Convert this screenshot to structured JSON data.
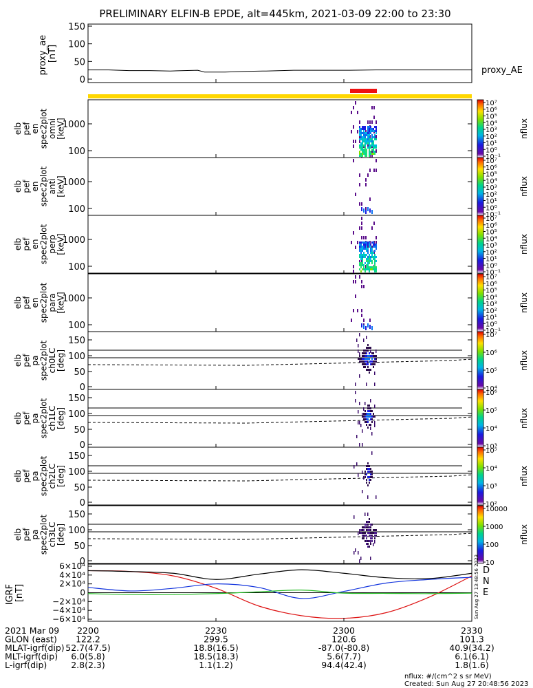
{
  "title": "PRELIMINARY ELFIN-B EPDE, alt=445km, 2021-03-09 22:00 to 23:30",
  "colors": {
    "proxy_bar": "#ffd700",
    "science_bar": "#ee1111",
    "igrf_D": "#dd1111",
    "igrf_N": "#1133dd",
    "igrf_E": "#22bb22"
  },
  "chart_data": [
    {
      "type": "line",
      "panel": "proxy_ae",
      "ylabel": "proxy_ae [nT]",
      "legend": "proxy_AE",
      "ylim": [
        0,
        150
      ],
      "yticks": [
        "150",
        "100",
        "50",
        "0"
      ],
      "x_minutes": [
        0,
        30,
        60,
        90,
        120,
        140,
        160,
        170,
        200,
        230,
        260,
        300,
        340,
        380,
        420,
        450,
        480,
        520,
        560
      ],
      "values": [
        26,
        26,
        24,
        24,
        23,
        24,
        25,
        20,
        20,
        22,
        23,
        25,
        25,
        25,
        26,
        26,
        26,
        26,
        26
      ]
    },
    {
      "type": "heatmap",
      "panel": "omni",
      "ylabel": "elb pef en spec2plot omni [keV]",
      "yticks": [
        "1000",
        "100"
      ],
      "colorbar_label": "nflux",
      "colorbar_ticks": [
        "10⁷",
        "10⁶",
        "10⁵",
        "10⁴",
        "10³",
        "10²",
        "10¹",
        "10⁰",
        "10⁻¹"
      ]
    },
    {
      "type": "heatmap",
      "panel": "anti",
      "ylabel": "elb pef en spec2plot anti [keV]",
      "yticks": [
        "1000",
        "100"
      ],
      "colorbar_label": "nflux",
      "colorbar_ticks": [
        "10⁷",
        "10⁶",
        "10⁵",
        "10⁴",
        "10³",
        "10²",
        "10¹",
        "10⁰",
        "10⁻¹"
      ]
    },
    {
      "type": "heatmap",
      "panel": "perp",
      "ylabel": "elb pef en spec2plot perp [keV]",
      "yticks": [
        "1000",
        "100"
      ],
      "colorbar_label": "nflux",
      "colorbar_ticks": [
        "10⁷",
        "10⁶",
        "10⁵",
        "10⁴",
        "10³",
        "10²",
        "10¹",
        "10⁰",
        "10⁻¹"
      ]
    },
    {
      "type": "heatmap",
      "panel": "para",
      "ylabel": "elb pef en spec2plot para [keV]",
      "yticks": [
        "1000",
        "100"
      ],
      "colorbar_label": "nflux",
      "colorbar_ticks": [
        "10⁷",
        "10⁶",
        "10⁵",
        "10⁴",
        "10³",
        "10²",
        "10¹",
        "10⁰",
        "10⁻¹"
      ]
    },
    {
      "type": "heatmap",
      "panel": "ch0LC",
      "ylabel": "elb pef pa spec2plot ch0LC [deg]",
      "ylim": [
        0,
        180
      ],
      "yticks": [
        "150",
        "100",
        "50",
        "0"
      ],
      "colorbar_label": "nflux",
      "colorbar_ticks": [
        "10⁷",
        "10⁶",
        "10⁵",
        "10⁴"
      ]
    },
    {
      "type": "heatmap",
      "panel": "ch1LC",
      "ylabel": "elb pef pa spec2plot ch1LC [deg]",
      "ylim": [
        0,
        180
      ],
      "yticks": [
        "150",
        "100",
        "50",
        "0"
      ],
      "colorbar_label": "nflux",
      "colorbar_ticks": [
        "10⁶",
        "10⁵",
        "10⁴",
        "10³"
      ]
    },
    {
      "type": "heatmap",
      "panel": "ch2LC",
      "ylabel": "elb pef pa spec2plot ch2LC [deg]",
      "ylim": [
        0,
        180
      ],
      "yticks": [
        "150",
        "100",
        "50",
        "0"
      ],
      "colorbar_label": "nflux",
      "colorbar_ticks": [
        "10⁵",
        "10⁴",
        "10³",
        "10²"
      ]
    },
    {
      "type": "heatmap",
      "panel": "ch3LC",
      "ylabel": "elb pef pa spec2plot ch3LC [deg]",
      "ylim": [
        0,
        180
      ],
      "yticks": [
        "150",
        "100",
        "50",
        "0"
      ],
      "colorbar_label": "nflux",
      "colorbar_ticks": [
        "10000",
        "1000",
        "100",
        "10"
      ]
    },
    {
      "type": "line",
      "panel": "igrf",
      "ylabel": "IGRF [nT]",
      "ylim": [
        -60000,
        60000
      ],
      "yticks": [
        "6×10⁴",
        "4×10⁴",
        "2×10⁴",
        "0",
        "−2×10⁴",
        "−4×10⁴",
        "−6×10⁴"
      ],
      "x_minutes": [
        0,
        10,
        20,
        30,
        40,
        50,
        60,
        70,
        80,
        90
      ],
      "series": [
        {
          "name": "D",
          "values": [
            50000,
            48000,
            38000,
            10000,
            -30000,
            -52000,
            -58000,
            -45000,
            -10000,
            38000
          ]
        },
        {
          "name": "N",
          "values": [
            12000,
            4000,
            10000,
            20000,
            12000,
            -13000,
            3000,
            22000,
            30000,
            35000
          ]
        },
        {
          "name": "E",
          "values": [
            -2000,
            -4000,
            -4000,
            -2000,
            2000,
            6000,
            -1000,
            -1500,
            -2000,
            -1000
          ]
        },
        {
          "name": "",
          "values": [
            50000,
            48000,
            44000,
            30000,
            42000,
            52000,
            44000,
            34000,
            32000,
            44000
          ]
        }
      ]
    }
  ],
  "xaxis": {
    "row_labels": [
      "2021 Mar 09",
      "GLON (east)",
      "MLAT-igrf(dip)",
      "MLT-igrf(dip)",
      "L-igrf(dip)"
    ],
    "ticks": [
      {
        "minute": 0,
        "values": [
          "2200",
          "122.2",
          "52.7(47.5)",
          "6.0(5.8)",
          "2.8(2.3)"
        ]
      },
      {
        "minute": 30,
        "values": [
          "2230",
          "299.5",
          "18.8(16.5)",
          "18.5(18.3)",
          "1.1(1.2)"
        ]
      },
      {
        "minute": 60,
        "values": [
          "2300",
          "120.6",
          "-87.0(-80.8)",
          "5.6(7.7)",
          "94.4(42.4)"
        ]
      },
      {
        "minute": 90,
        "values": [
          "2330",
          "101.3",
          "40.9(34.2)",
          "6.1(6.1)",
          "1.8(1.6)"
        ]
      }
    ]
  },
  "footer": {
    "units": "nflux: #/(cm^2 s sr MeV)",
    "created": "Created: Sun Aug 27 20:48:56 2023",
    "side_stamp": "Sun Aug 27 13:48:56 2023"
  }
}
